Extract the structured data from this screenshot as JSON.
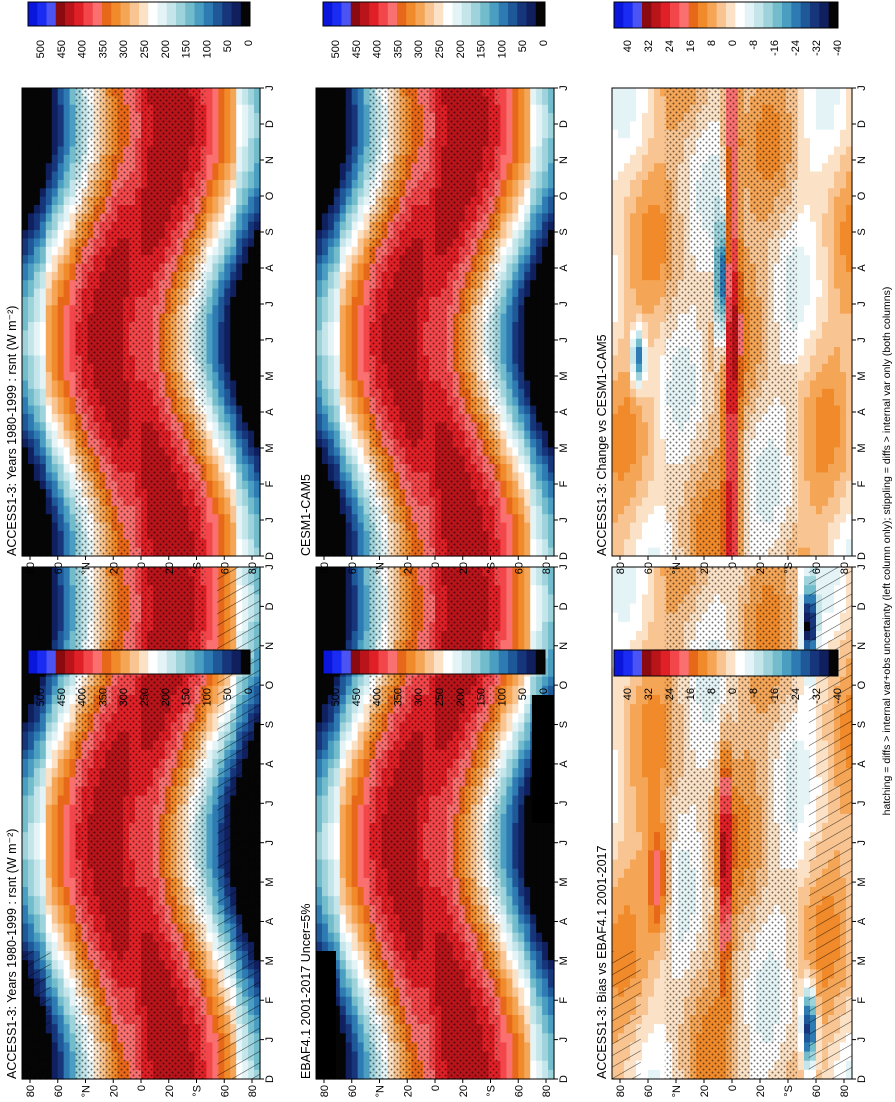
{
  "figure": {
    "footer": "hatching = diffs > internal var+obs uncertainty (left column only); stippling = diffs > internal var only (both columns)"
  },
  "chart_data": [
    {
      "id": "p1",
      "type": "heatmap",
      "kind": "abs",
      "hatch": true,
      "stipple": true,
      "blackmask": false,
      "title": "ACCESS1-3: Years 1980-1999 : rsnt (W m⁻²)",
      "months": [
        "D",
        "J",
        "F",
        "M",
        "A",
        "M",
        "J",
        "J",
        "A",
        "S",
        "O",
        "N",
        "D",
        "J"
      ],
      "lat_labels": [
        "80",
        "60",
        "°N",
        "20",
        "0",
        "20",
        "°S",
        "60",
        "80"
      ]
    },
    {
      "id": "p2",
      "type": "heatmap",
      "kind": "abs",
      "hatch": false,
      "stipple": true,
      "blackmask": false,
      "title": "ACCESS1-3: Years 1980-1999 : rsnt (W m⁻²)",
      "months": [
        "D",
        "J",
        "F",
        "M",
        "A",
        "M",
        "J",
        "J",
        "A",
        "S",
        "O",
        "N",
        "D",
        "J"
      ],
      "lat_labels": [
        "80",
        "60",
        "°N",
        "20",
        "0",
        "20",
        "°S",
        "60",
        "80"
      ]
    },
    {
      "id": "p3",
      "type": "heatmap",
      "kind": "abs",
      "hatch": false,
      "stipple": true,
      "blackmask": true,
      "title": "EBAF4.1 2001-2017 Uncer=5%",
      "months": [
        "D",
        "J",
        "F",
        "M",
        "A",
        "M",
        "J",
        "J",
        "A",
        "S",
        "O",
        "N",
        "D",
        "J"
      ],
      "lat_labels": [
        "80",
        "60",
        "°N",
        "20",
        "0",
        "20",
        "°S",
        "60",
        "80"
      ]
    },
    {
      "id": "p4",
      "type": "heatmap",
      "kind": "abs",
      "hatch": false,
      "stipple": true,
      "blackmask": false,
      "title": "CESM1-CAM5",
      "months": [
        "D",
        "J",
        "F",
        "M",
        "A",
        "M",
        "J",
        "J",
        "A",
        "S",
        "O",
        "N",
        "D",
        "J"
      ],
      "lat_labels": [
        "80",
        "60",
        "°N",
        "20",
        "0",
        "20",
        "°S",
        "60",
        "80"
      ]
    },
    {
      "id": "p5",
      "type": "heatmap",
      "kind": "diff",
      "hatch": true,
      "stipple": true,
      "blackmask": false,
      "title": "ACCESS1-3: Bias vs EBAF4.1 2001-2017",
      "months": [
        "D",
        "J",
        "F",
        "M",
        "A",
        "M",
        "J",
        "J",
        "A",
        "S",
        "O",
        "N",
        "D",
        "J"
      ],
      "lat_labels": [
        "80",
        "60",
        "°N",
        "20",
        "0",
        "20",
        "°S",
        "60",
        "80"
      ]
    },
    {
      "id": "p6",
      "type": "heatmap",
      "kind": "diff",
      "hatch": false,
      "stipple": true,
      "blackmask": false,
      "title": "ACCESS1-3: Change vs CESM1-CAM5",
      "months": [
        "D",
        "J",
        "F",
        "M",
        "A",
        "M",
        "J",
        "J",
        "A",
        "S",
        "O",
        "N",
        "D",
        "J"
      ],
      "lat_labels": [
        "80",
        "60",
        "°N",
        "20",
        "0",
        "20",
        "°S",
        "60",
        "80"
      ]
    }
  ],
  "colorbars": {
    "abs": {
      "labels": [
        "500",
        "450",
        "400",
        "350",
        "300",
        "250",
        "200",
        "150",
        "100",
        "50",
        "0"
      ],
      "colors": [
        "#0a16dc",
        "#1a2cf2",
        "#4a54f4",
        "#8b0a10",
        "#b8141a",
        "#e02027",
        "#f2464a",
        "#fa7070",
        "#e8681a",
        "#f08a2a",
        "#f4a556",
        "#f8c592",
        "#fbe2c6",
        "#ffffff",
        "#e4f4f6",
        "#c4e6ea",
        "#9ed3dc",
        "#72bccc",
        "#4a9ec2",
        "#2e7ab2",
        "#1e5898",
        "#16357a",
        "#10205e",
        "#050505"
      ]
    },
    "diff": {
      "labels": [
        "40",
        "32",
        "24",
        "16",
        "8",
        "0",
        "-8",
        "-16",
        "-24",
        "-32",
        "-40"
      ],
      "colors": [
        "#0a16dc",
        "#1a2cf2",
        "#4a54f4",
        "#8b0a10",
        "#b8141a",
        "#e02027",
        "#f2464a",
        "#fa7070",
        "#e8681a",
        "#f08a2a",
        "#f4a556",
        "#f8c592",
        "#fbe2c6",
        "#ffffff",
        "#e4f4f6",
        "#c4e6ea",
        "#9ed3dc",
        "#72bccc",
        "#4a9ec2",
        "#2e7ab2",
        "#1e5898",
        "#16357a",
        "#10205e",
        "#050505"
      ]
    }
  }
}
